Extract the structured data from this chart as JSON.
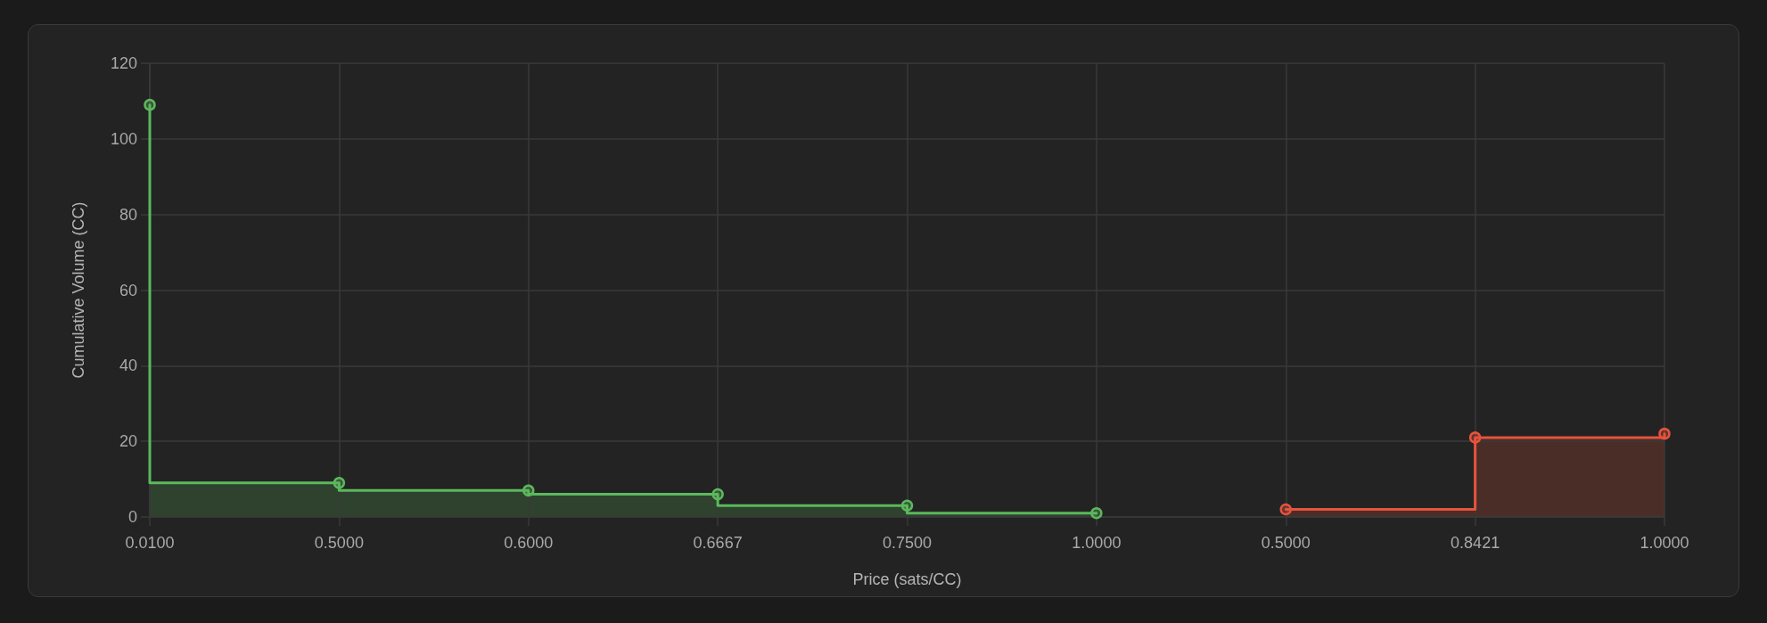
{
  "chart_data": {
    "type": "area",
    "xlabel": "Price (sats/CC)",
    "ylabel": "Cumulative Volume (CC)",
    "categories": [
      "0.0100",
      "0.5000",
      "0.6000",
      "0.6667",
      "0.7500",
      "1.0000",
      "0.5000",
      "0.8421",
      "1.0000"
    ],
    "series": [
      {
        "type": "step",
        "color": "#5cb85c",
        "values": [
          109,
          9,
          7,
          6,
          3,
          1,
          null,
          null,
          null
        ]
      },
      {
        "type": "step",
        "color": "#e5533d",
        "values": [
          null,
          null,
          null,
          null,
          null,
          null,
          2,
          21,
          22
        ]
      }
    ],
    "ylim": [
      0,
      120
    ],
    "yticks": [
      0,
      20,
      40,
      60,
      80,
      100,
      120
    ],
    "grid": true,
    "marker": "circle",
    "line_style": "solid"
  }
}
